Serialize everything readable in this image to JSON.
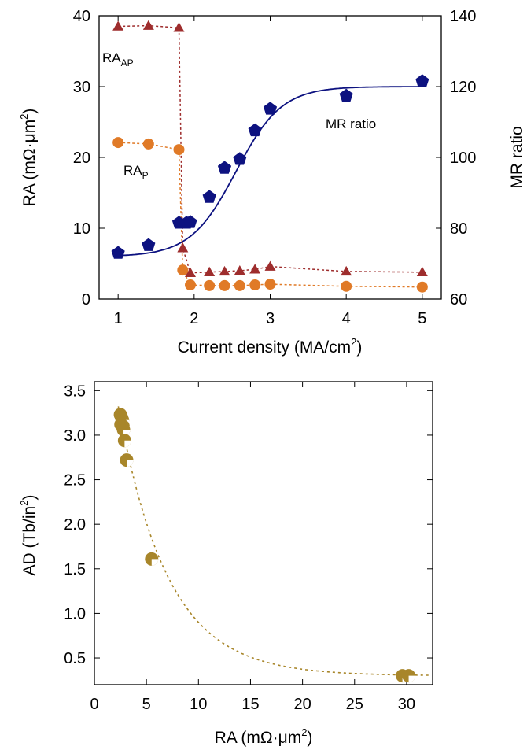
{
  "chart_data": [
    {
      "type": "scatter",
      "xlabel": {
        "pre": "Current density (MA/cm",
        "sup": "2",
        "post": ")"
      },
      "ylabel": {
        "pre": "RA (mΩ·μm",
        "sup": "2",
        "post": ")"
      },
      "y2label": "MR ratio",
      "xlim": [
        0.75,
        5.25
      ],
      "ylim": [
        0,
        40
      ],
      "y2lim": [
        60,
        140
      ],
      "xticks": [
        "1",
        "2",
        "3",
        "4",
        "5"
      ],
      "yticks": [
        "0",
        "10",
        "20",
        "30",
        "40"
      ],
      "y2ticks": [
        "60",
        "80",
        "100",
        "120",
        "140"
      ],
      "colors": {
        "ap": "#9e2d2d",
        "p": "#e07a27",
        "mr": "#0d1280"
      },
      "annotations": {
        "ra_ap": {
          "main": "RA",
          "sub": "AP"
        },
        "ra_p": {
          "main": "RA",
          "sub": "P"
        },
        "mr": "MR ratio"
      },
      "series": [
        {
          "name": "RA_AP",
          "axis": "left",
          "x": [
            1.0,
            1.4,
            1.8,
            1.85,
            1.95,
            2.2,
            2.4,
            2.6,
            2.8,
            3.0,
            4.0,
            5.0
          ],
          "y": [
            38.5,
            38.6,
            38.3,
            7.2,
            3.7,
            3.8,
            3.9,
            4.0,
            4.2,
            4.6,
            3.9,
            3.8
          ]
        },
        {
          "name": "RA_P",
          "axis": "left",
          "x": [
            1.0,
            1.4,
            1.8,
            1.85,
            1.95,
            2.2,
            2.4,
            2.6,
            2.8,
            3.0,
            4.0,
            5.0
          ],
          "y": [
            22.1,
            21.9,
            21.1,
            4.1,
            2.0,
            1.9,
            1.9,
            1.9,
            2.0,
            2.1,
            1.8,
            1.7
          ]
        },
        {
          "name": "MR ratio",
          "axis": "right",
          "x": [
            1.0,
            1.4,
            1.8,
            1.9,
            1.95,
            2.2,
            2.4,
            2.6,
            2.8,
            3.0,
            4.0,
            5.0
          ],
          "y": [
            73,
            75.2,
            81.5,
            81.5,
            81.7,
            88.8,
            97,
            99.5,
            107.6,
            113.7,
            117.4,
            121.5
          ]
        }
      ],
      "fit": {
        "series": "MR ratio",
        "base": 72,
        "amp": 48,
        "center": 2.55,
        "width": 0.3
      }
    },
    {
      "type": "scatter",
      "xlabel": {
        "pre": "RA (mΩ·μm",
        "sup": "2",
        "post": ")"
      },
      "ylabel": {
        "pre": "AD (Tb/in",
        "sup": "2",
        "post": ")"
      },
      "xlim": [
        0,
        32.5
      ],
      "ylim": [
        0.2,
        3.6
      ],
      "xticks": [
        "0",
        "5",
        "10",
        "15",
        "20",
        "25",
        "30"
      ],
      "yticks": [
        "0.5",
        "1.0",
        "1.5",
        "2.0",
        "2.5",
        "3.0",
        "3.5"
      ],
      "colors": {
        "points": "#a8862a"
      },
      "series": [
        {
          "name": "AD",
          "x": [
            2.5,
            2.6,
            2.7,
            2.55,
            2.75,
            2.8,
            2.9,
            3.1,
            5.5,
            29.6,
            30.2
          ],
          "y": [
            3.23,
            3.2,
            3.17,
            3.12,
            3.1,
            3.06,
            2.94,
            2.72,
            1.61,
            0.3,
            0.3
          ]
        }
      ],
      "fit": {
        "c": 0.3,
        "a": 4.9,
        "k": 0.21
      }
    }
  ]
}
